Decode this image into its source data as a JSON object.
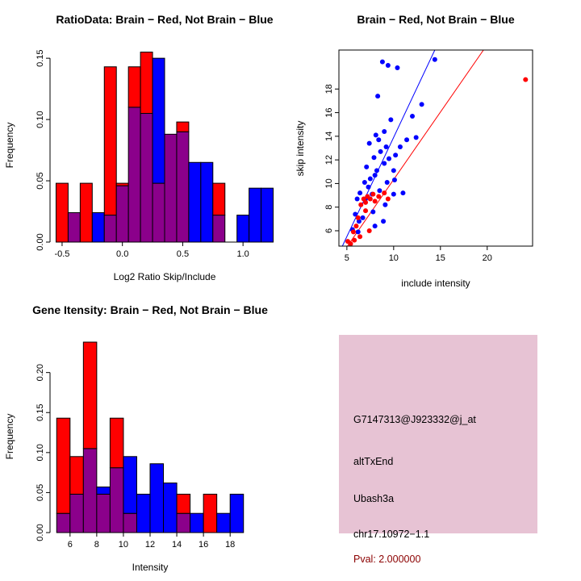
{
  "colors": {
    "red": "#FF0000",
    "blue": "#0000FF",
    "overlap": "#8B008B",
    "panel_pink": "#E7C3D4",
    "pval_red": "#8B0000",
    "black": "#000000",
    "background": "#FFFFFF"
  },
  "chart_data": [
    {
      "type": "histogram",
      "title": "RatioData: Brain − Red, Not Brain − Blue",
      "xlabel": "Log2 Ratio Skip/Include",
      "ylabel": "Frequency",
      "bin_start": -0.55,
      "bin_width": 0.1,
      "xlim": [
        -0.6,
        1.3
      ],
      "ylim": [
        0,
        0.158
      ],
      "xticks": [
        -0.5,
        0,
        0.5,
        1
      ],
      "xtick_decimals": 1,
      "yticks": [
        0,
        0.05,
        0.1,
        0.15
      ],
      "ytick_decimals": 2,
      "grid": false,
      "legend": "none",
      "series": [
        {
          "name": "Brain",
          "color": "red",
          "values": [
            0.048,
            0.024,
            0.048,
            0,
            0.143,
            0.048,
            0.143,
            0.155,
            0.048,
            0.088,
            0.098,
            0,
            0,
            0.048,
            0,
            0,
            0,
            0
          ]
        },
        {
          "name": "Not Brain",
          "color": "blue",
          "values": [
            0,
            0.024,
            0,
            0.024,
            0.022,
            0.046,
            0.11,
            0.105,
            0.15,
            0.088,
            0.09,
            0.065,
            0.065,
            0.022,
            0,
            0.022,
            0.044,
            0.044
          ]
        }
      ]
    },
    {
      "type": "scatter",
      "title": "Brain − Red, Not Brain − Blue",
      "xlabel": "include intensity",
      "ylabel": "skip intensity",
      "xlim": [
        4.15,
        24.85
      ],
      "ylim": [
        4.7,
        21.3
      ],
      "xticks": [
        5,
        10,
        15,
        20
      ],
      "xtick_decimals": 0,
      "yticks": [
        6,
        8,
        10,
        12,
        14,
        16,
        18
      ],
      "ytick_decimals": 0,
      "grid": false,
      "legend": "none",
      "series": [
        {
          "name": "Not Brain",
          "color": "blue",
          "points": [
            [
              5.6,
              6.1
            ],
            [
              5.9,
              7.4
            ],
            [
              6.1,
              8.7
            ],
            [
              6.3,
              6.8
            ],
            [
              6.4,
              9.2
            ],
            [
              6.7,
              7.1
            ],
            [
              6.9,
              10.1
            ],
            [
              7.0,
              8.7
            ],
            [
              7.1,
              11.4
            ],
            [
              7.3,
              9.7
            ],
            [
              7.4,
              13.4
            ],
            [
              7.5,
              10.4
            ],
            [
              7.7,
              9.1
            ],
            [
              7.9,
              12.2
            ],
            [
              8.0,
              10.7
            ],
            [
              8.0,
              6.4
            ],
            [
              8.1,
              14.1
            ],
            [
              8.2,
              11.1
            ],
            [
              8.3,
              17.4
            ],
            [
              8.4,
              13.7
            ],
            [
              8.5,
              9.4
            ],
            [
              8.6,
              12.7
            ],
            [
              8.8,
              20.3
            ],
            [
              9.0,
              14.4
            ],
            [
              9.0,
              11.7
            ],
            [
              9.2,
              13.1
            ],
            [
              9.3,
              10.1
            ],
            [
              9.4,
              20.0
            ],
            [
              9.5,
              12.1
            ],
            [
              9.7,
              15.4
            ],
            [
              10.0,
              11.1
            ],
            [
              10.0,
              9.1
            ],
            [
              10.2,
              12.4
            ],
            [
              10.4,
              19.8
            ],
            [
              10.7,
              13.1
            ],
            [
              11.0,
              9.2
            ],
            [
              11.4,
              13.7
            ],
            [
              12.0,
              15.7
            ],
            [
              12.4,
              13.9
            ],
            [
              13.0,
              16.7
            ],
            [
              14.4,
              20.5
            ],
            [
              6.2,
              5.9
            ],
            [
              7.8,
              7.6
            ],
            [
              9.1,
              8.2
            ],
            [
              10.1,
              10.3
            ],
            [
              8.9,
              6.8
            ]
          ]
        },
        {
          "name": "Brain",
          "color": "red",
          "points": [
            [
              5.1,
              5.1
            ],
            [
              5.4,
              4.9
            ],
            [
              5.7,
              5.9
            ],
            [
              6.0,
              6.4
            ],
            [
              6.2,
              7.1
            ],
            [
              6.4,
              5.5
            ],
            [
              6.5,
              8.2
            ],
            [
              6.8,
              8.7
            ],
            [
              7.0,
              8.4
            ],
            [
              7.0,
              7.7
            ],
            [
              7.2,
              8.9
            ],
            [
              7.4,
              6.0
            ],
            [
              7.5,
              8.7
            ],
            [
              7.8,
              9.1
            ],
            [
              8.0,
              8.5
            ],
            [
              8.4,
              8.9
            ],
            [
              9.0,
              9.2
            ],
            [
              9.4,
              8.7
            ],
            [
              5.8,
              5.2
            ],
            [
              24.1,
              18.8
            ]
          ]
        }
      ],
      "lines": [
        {
          "color": "blue",
          "x1": 4.4,
          "y1": 4.5,
          "x2": 14.4,
          "y2": 21.3
        },
        {
          "color": "red",
          "x1": 4.8,
          "y1": 4.4,
          "x2": 19.6,
          "y2": 21.3
        }
      ]
    },
    {
      "type": "histogram",
      "title": "Gene Itensity: Brain − Red, Not Brain − Blue",
      "xlabel": "Intensity",
      "ylabel": "Frequency",
      "bin_start": 5,
      "bin_width": 1,
      "xlim": [
        4.5,
        19.5
      ],
      "ylim": [
        0,
        0.24
      ],
      "xticks": [
        6,
        8,
        10,
        12,
        14,
        16,
        18
      ],
      "xtick_decimals": 0,
      "yticks": [
        0,
        0.05,
        0.1,
        0.15,
        0.2
      ],
      "ytick_decimals": 2,
      "grid": false,
      "legend": "none",
      "series": [
        {
          "name": "Brain",
          "color": "red",
          "values": [
            0.143,
            0.095,
            0.238,
            0.048,
            0.143,
            0.024,
            0,
            0,
            0,
            0.048,
            0,
            0.048,
            0,
            0
          ]
        },
        {
          "name": "Not Brain",
          "color": "blue",
          "values": [
            0.024,
            0.048,
            0.105,
            0.057,
            0.081,
            0.095,
            0.048,
            0.086,
            0.062,
            0.024,
            0.024,
            0,
            0.024,
            0.048
          ]
        }
      ]
    }
  ],
  "info_panel": {
    "bg": "#E7C3D4",
    "lines": [
      {
        "text": "G7147313@J923332@j_at",
        "color": "#000000"
      },
      {
        "text": "altTxEnd",
        "color": "#000000"
      },
      {
        "text": "Ubash3a",
        "color": "#000000"
      },
      {
        "text": "chr17.10972−1.1",
        "color": "#000000"
      },
      {
        "text": "Pval: 2.000000",
        "color": "#8B0000"
      }
    ]
  }
}
